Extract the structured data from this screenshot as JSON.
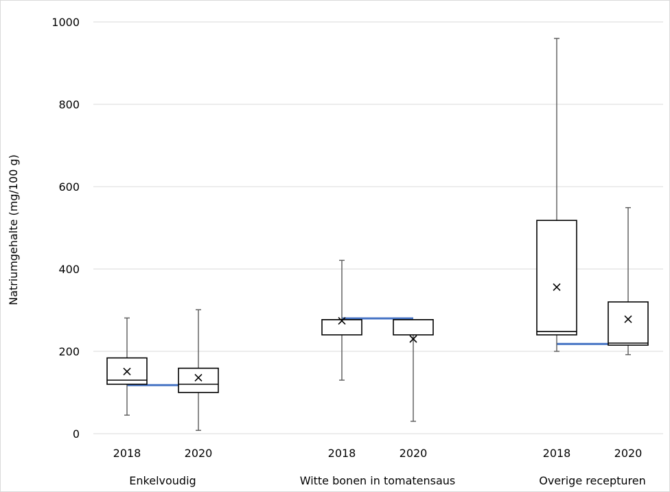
{
  "chart_data": {
    "type": "box",
    "ylabel": "Natriumgehalte  (mg/100  g)",
    "ylim": [
      0,
      1000
    ],
    "yticks": [
      0,
      200,
      400,
      600,
      800,
      1000
    ],
    "grid": true,
    "groups": [
      {
        "name": "Enkelvoudig",
        "reference": 118,
        "boxes": [
          {
            "label": "2018",
            "min": 45,
            "q1": 120,
            "median": 130,
            "q3": 184,
            "max": 281,
            "mean": 151
          },
          {
            "label": "2020",
            "min": 8,
            "q1": 100,
            "median": 120,
            "q3": 159,
            "max": 301,
            "mean": 136
          }
        ]
      },
      {
        "name": "Witte bonen in tomatensaus",
        "reference": 280,
        "boxes": [
          {
            "label": "2018",
            "min": 130,
            "q1": 240,
            "median": 277,
            "q3": 277,
            "max": 421,
            "mean": 274
          },
          {
            "label": "2020",
            "min": 30,
            "q1": 240,
            "median": 277,
            "q3": 277,
            "max": 277,
            "mean": 230
          }
        ]
      },
      {
        "name": "Overige recepturen",
        "reference": 218,
        "boxes": [
          {
            "label": "2018",
            "min": 200,
            "q1": 240,
            "median": 248,
            "q3": 518,
            "max": 960,
            "mean": 356
          },
          {
            "label": "2020",
            "min": 192,
            "q1": 215,
            "median": 220,
            "q3": 320,
            "max": 549,
            "mean": 278
          }
        ]
      }
    ]
  },
  "colors": {
    "reference_line": "#4472c4",
    "grid": "#d9d9d9",
    "box_stroke": "#000000",
    "whisker": "#595959"
  }
}
